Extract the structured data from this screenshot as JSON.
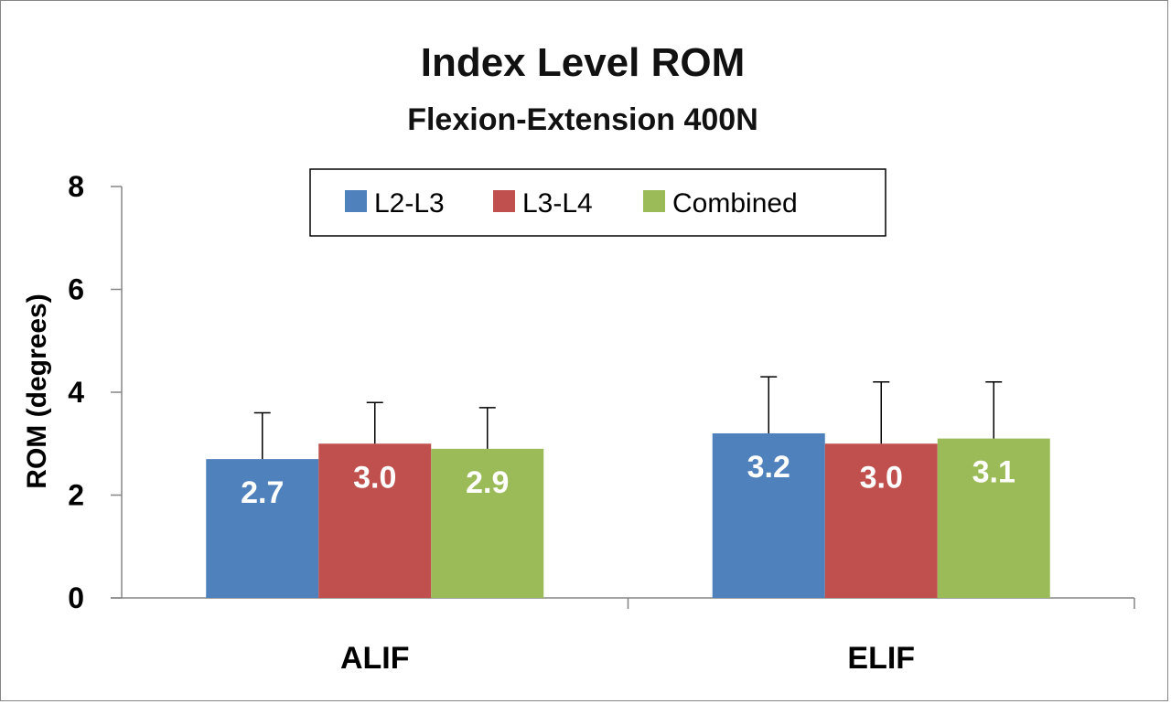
{
  "chart_data": {
    "type": "bar",
    "title": "Index Level ROM",
    "subtitle": "Flexion-Extension 400N",
    "xlabel": "",
    "ylabel": "ROM (degrees)",
    "categories": [
      "ALIF",
      "ELIF"
    ],
    "series": [
      {
        "name": "L2-L3",
        "color": "#4F81BD",
        "values": [
          2.7,
          3.2
        ],
        "error": [
          0.9,
          1.1
        ],
        "labels": [
          "2.7",
          "3.2"
        ]
      },
      {
        "name": "L3-L4",
        "color": "#C0504D",
        "values": [
          3.0,
          3.0
        ],
        "error": [
          0.8,
          1.2
        ],
        "labels": [
          "3.0",
          "3.0"
        ]
      },
      {
        "name": "Combined",
        "color": "#9BBB59",
        "values": [
          2.9,
          3.1
        ],
        "error": [
          0.8,
          1.1
        ],
        "labels": [
          "2.9",
          "3.1"
        ]
      }
    ],
    "ylim": [
      0,
      8
    ],
    "yticks": [
      "0",
      "2",
      "4",
      "6",
      "8"
    ],
    "ytick_values": [
      0,
      2,
      4,
      6,
      8
    ],
    "grid": false,
    "legend_position": "top-center"
  }
}
